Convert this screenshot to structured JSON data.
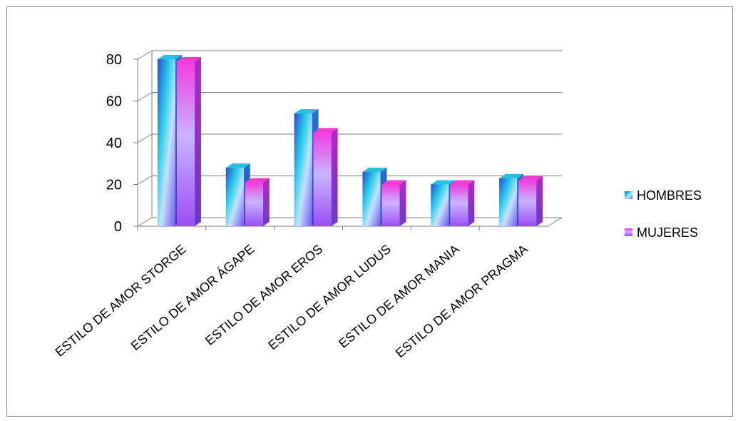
{
  "chart_data": {
    "type": "bar",
    "categories": [
      "ESTILO DE AMOR STORGE",
      "ESTILO DE AMOR ÁGAPE",
      "ESTILO DE AMOR EROS",
      "ESTILO DE AMOR LUDUS",
      "ESTILO DE AMOR MANIA",
      "ESTILO DE AMOR PRAGMA"
    ],
    "series": [
      {
        "name": "HOMBRES",
        "values": [
          80,
          28,
          54,
          26,
          20,
          23
        ]
      },
      {
        "name": "MUJERES",
        "values": [
          79,
          21,
          45,
          20,
          20,
          22
        ]
      }
    ],
    "yticks": [
      "0",
      "20",
      "40",
      "60",
      "80"
    ],
    "ylim": [
      0,
      80
    ],
    "grid": true,
    "legend_position": "right",
    "colors": {
      "HOMBRES": [
        "#1e4fd6",
        "#2fd0e8",
        "#c6e0ff",
        "#6f58f2"
      ],
      "MUJERES": [
        "#8a3ef0",
        "#f03ce0",
        "#c9b4ff",
        "#9a4df2"
      ]
    }
  }
}
